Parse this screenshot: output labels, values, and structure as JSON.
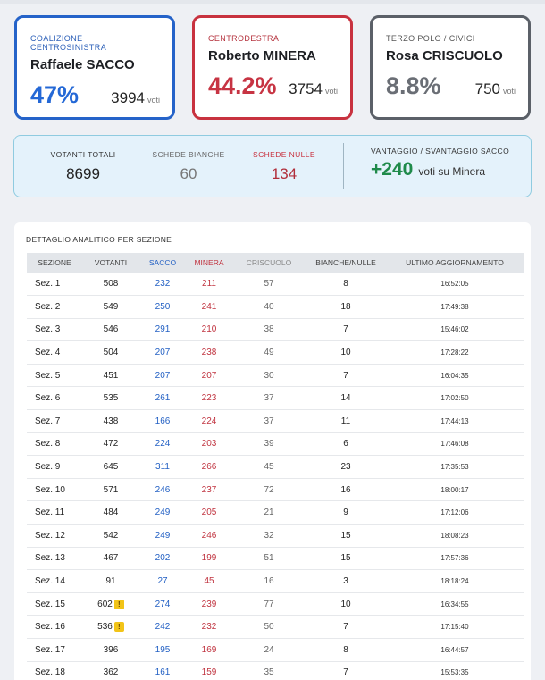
{
  "candidates": [
    {
      "coalition": "COALIZIONE CENTROSINISTRA",
      "name": "Raffaele SACCO",
      "pct": "47%",
      "votes": "3994",
      "unit": "voti",
      "color": "#2468d6"
    },
    {
      "coalition": "CENTRODESTRA",
      "name": "Roberto MINERA",
      "pct": "44.2%",
      "votes": "3754",
      "unit": "voti",
      "color": "#c73443"
    },
    {
      "coalition": "TERZO POLO / CIVICI",
      "name": "Rosa CRISCUOLO",
      "pct": "8.8%",
      "votes": "750",
      "unit": "voti",
      "color": "#6a6e75"
    }
  ],
  "summary": {
    "votanti_label": "VOTANTI TOTALI",
    "votanti_value": "8699",
    "bianche_label": "SCHEDE BIANCHE",
    "bianche_value": "60",
    "nulle_label": "SCHEDE NULLE",
    "nulle_value": "134",
    "advantage_label": "VANTAGGIO / SVANTAGGIO SACCO",
    "advantage_value": "+240",
    "advantage_text": "voti su Minera"
  },
  "table": {
    "title": "DETTAGLIO ANALITICO PER SEZIONE",
    "headers": [
      "SEZIONE",
      "VOTANTI",
      "SACCO",
      "MINERA",
      "CRISCUOLO",
      "BIANCHE/NULLE",
      "ULTIMO AGGIORNAMENTO"
    ],
    "warning_glyph": "!",
    "rows": [
      {
        "sez": "Sez. 1",
        "votanti": "508",
        "sacco": "232",
        "minera": "211",
        "cris": "57",
        "bn": "8",
        "upd": "16:52:05",
        "warn": false
      },
      {
        "sez": "Sez. 2",
        "votanti": "549",
        "sacco": "250",
        "minera": "241",
        "cris": "40",
        "bn": "18",
        "upd": "17:49:38",
        "warn": false
      },
      {
        "sez": "Sez. 3",
        "votanti": "546",
        "sacco": "291",
        "minera": "210",
        "cris": "38",
        "bn": "7",
        "upd": "15:46:02",
        "warn": false
      },
      {
        "sez": "Sez. 4",
        "votanti": "504",
        "sacco": "207",
        "minera": "238",
        "cris": "49",
        "bn": "10",
        "upd": "17:28:22",
        "warn": false
      },
      {
        "sez": "Sez. 5",
        "votanti": "451",
        "sacco": "207",
        "minera": "207",
        "cris": "30",
        "bn": "7",
        "upd": "16:04:35",
        "warn": false
      },
      {
        "sez": "Sez. 6",
        "votanti": "535",
        "sacco": "261",
        "minera": "223",
        "cris": "37",
        "bn": "14",
        "upd": "17:02:50",
        "warn": false
      },
      {
        "sez": "Sez. 7",
        "votanti": "438",
        "sacco": "166",
        "minera": "224",
        "cris": "37",
        "bn": "11",
        "upd": "17:44:13",
        "warn": false
      },
      {
        "sez": "Sez. 8",
        "votanti": "472",
        "sacco": "224",
        "minera": "203",
        "cris": "39",
        "bn": "6",
        "upd": "17:46:08",
        "warn": false
      },
      {
        "sez": "Sez. 9",
        "votanti": "645",
        "sacco": "311",
        "minera": "266",
        "cris": "45",
        "bn": "23",
        "upd": "17:35:53",
        "warn": false
      },
      {
        "sez": "Sez. 10",
        "votanti": "571",
        "sacco": "246",
        "minera": "237",
        "cris": "72",
        "bn": "16",
        "upd": "18:00:17",
        "warn": false
      },
      {
        "sez": "Sez. 11",
        "votanti": "484",
        "sacco": "249",
        "minera": "205",
        "cris": "21",
        "bn": "9",
        "upd": "17:12:06",
        "warn": false
      },
      {
        "sez": "Sez. 12",
        "votanti": "542",
        "sacco": "249",
        "minera": "246",
        "cris": "32",
        "bn": "15",
        "upd": "18:08:23",
        "warn": false
      },
      {
        "sez": "Sez. 13",
        "votanti": "467",
        "sacco": "202",
        "minera": "199",
        "cris": "51",
        "bn": "15",
        "upd": "17:57:36",
        "warn": false
      },
      {
        "sez": "Sez. 14",
        "votanti": "91",
        "sacco": "27",
        "minera": "45",
        "cris": "16",
        "bn": "3",
        "upd": "18:18:24",
        "warn": false
      },
      {
        "sez": "Sez. 15",
        "votanti": "602",
        "sacco": "274",
        "minera": "239",
        "cris": "77",
        "bn": "10",
        "upd": "16:34:55",
        "warn": true
      },
      {
        "sez": "Sez. 16",
        "votanti": "536",
        "sacco": "242",
        "minera": "232",
        "cris": "50",
        "bn": "7",
        "upd": "17:15:40",
        "warn": true
      },
      {
        "sez": "Sez. 17",
        "votanti": "396",
        "sacco": "195",
        "minera": "169",
        "cris": "24",
        "bn": "8",
        "upd": "16:44:57",
        "warn": false
      },
      {
        "sez": "Sez. 18",
        "votanti": "362",
        "sacco": "161",
        "minera": "159",
        "cris": "35",
        "bn": "7",
        "upd": "15:53:35",
        "warn": false
      }
    ]
  }
}
